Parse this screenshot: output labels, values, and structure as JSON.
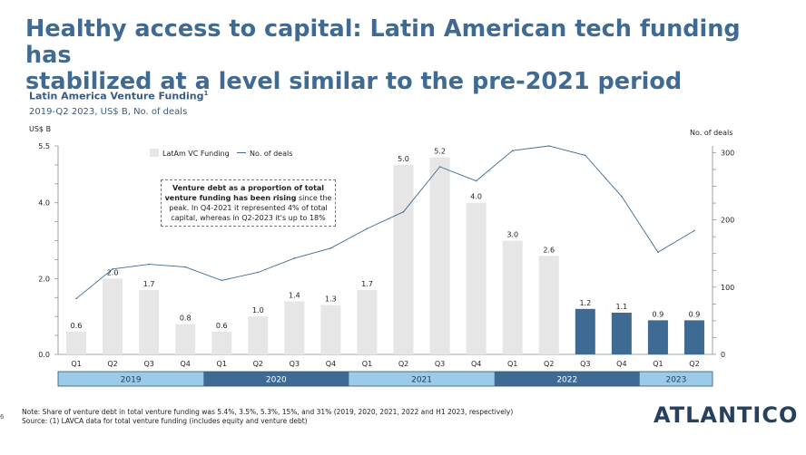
{
  "page": {
    "title_line1": "Healthy access to capital: Latin American tech funding has",
    "title_line2": "stabilized at a level similar to the pre-2021 period",
    "page_number": "6",
    "logo_text": "ATLANTICO",
    "note": "Note: Share of venture debt in total venture funding was 5.4%, 3.5%, 5.3%, 15%, and 31% (2019, 2020, 2021, 2022 and H1 2023, respectively)",
    "source": "Source: (1) LAVCA data for total venture funding (includes equity and venture debt)",
    "annotation": {
      "bold": "Venture debt as a proportion of total venture funding has been rising",
      "rest": " since the peak. In Q4-2021 it represented 4% of total capital, whereas in Q2-2023 it's up to 18%"
    }
  },
  "chart_data": {
    "type": "bar",
    "title": "Latin America Venture Funding",
    "title_footnote": "1",
    "subtitle": "2019-Q2 2023, US$ B, No. of deals",
    "ylabel_left": "US$ B",
    "ylabel_right": "No. of deals",
    "ylim_left": [
      0,
      5.5
    ],
    "ylim_right": [
      0,
      310
    ],
    "yticks_left": [
      "0.0",
      "2.0",
      "4.0",
      "5.5"
    ],
    "yticks_left_values": [
      0,
      2,
      4,
      5.5
    ],
    "yticks_right": [
      "0",
      "100",
      "200",
      "300"
    ],
    "yticks_right_values": [
      0,
      100,
      200,
      300
    ],
    "categories": [
      "Q1",
      "Q2",
      "Q3",
      "Q4",
      "Q1",
      "Q2",
      "Q3",
      "Q4",
      "Q1",
      "Q2",
      "Q3",
      "Q4",
      "Q1",
      "Q2",
      "Q3",
      "Q4",
      "Q1",
      "Q2"
    ],
    "years": [
      {
        "label": "2019",
        "quarters": 4
      },
      {
        "label": "2020",
        "quarters": 4
      },
      {
        "label": "2021",
        "quarters": 4
      },
      {
        "label": "2022",
        "quarters": 4
      },
      {
        "label": "2023",
        "quarters": 2
      }
    ],
    "series": [
      {
        "name": "LatAm VC Funding",
        "type": "bar",
        "values": [
          0.6,
          2.0,
          1.7,
          0.8,
          0.6,
          1.0,
          1.4,
          1.3,
          1.7,
          5.0,
          5.2,
          4.0,
          3.0,
          2.6,
          1.2,
          1.1,
          0.9,
          0.9
        ],
        "labels": [
          "0.6",
          "2.0",
          "1.7",
          "0.8",
          "0.6",
          "1.0",
          "1.4",
          "1.3",
          "1.7",
          "5.0",
          "5.2",
          "4.0",
          "3.0",
          "2.6",
          "1.2",
          "1.1",
          "0.9",
          "0.9"
        ],
        "highlight_from_index": 14
      },
      {
        "name": "No. of deals",
        "type": "line",
        "values": [
          83,
          127,
          134,
          130,
          110,
          122,
          143,
          158,
          187,
          212,
          279,
          258,
          303,
          310,
          296,
          235,
          152,
          184
        ]
      }
    ],
    "colors": {
      "bar": "#e6e6e6",
      "bar_highlight": "#3e6a93",
      "line": "#3e6a93",
      "year_light": "#9ccbe8",
      "year_dark": "#3e6a93"
    }
  }
}
